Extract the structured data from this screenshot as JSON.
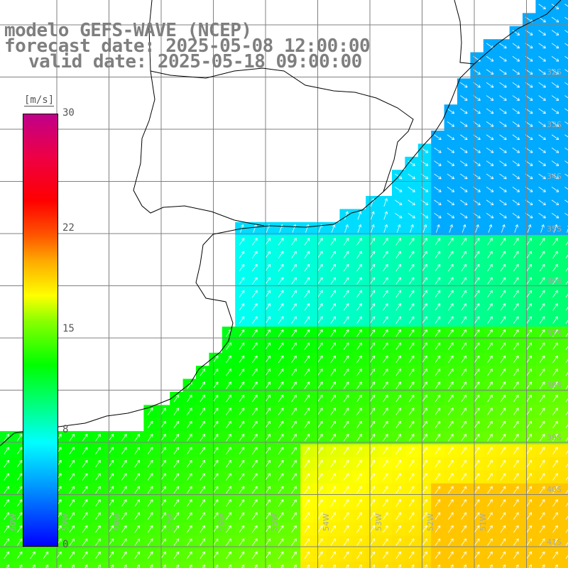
{
  "title": {
    "model": "modelo GEFS-WAVE (NCEP)",
    "forecast": "forecast date: 2025-05-08 12:00:00",
    "valid": "valid date: 2025-05-18 09:00:00"
  },
  "colorbar": {
    "unit": "[m/s]",
    "ticks": [
      {
        "value": 30,
        "label": "30"
      },
      {
        "value": 22,
        "label": "22"
      },
      {
        "value": 15,
        "label": "15"
      },
      {
        "value": 8,
        "label": "8"
      },
      {
        "value": 0,
        "label": "0"
      }
    ],
    "min": 0,
    "max": 30
  },
  "lat_labels": [
    "32S",
    "33S",
    "34S",
    "35S",
    "36S",
    "37S",
    "38S",
    "39S",
    "40S",
    "41S"
  ],
  "lon_labels": [
    "60W",
    "59W",
    "58W",
    "57W",
    "56W",
    "55W",
    "54W",
    "53W",
    "52W",
    "51W"
  ],
  "colors": {
    "land": "#ffffff",
    "grid": "#808080",
    "coast": "#000000",
    "arrows": "#ffffff",
    "title": "#7f7f7f"
  }
}
